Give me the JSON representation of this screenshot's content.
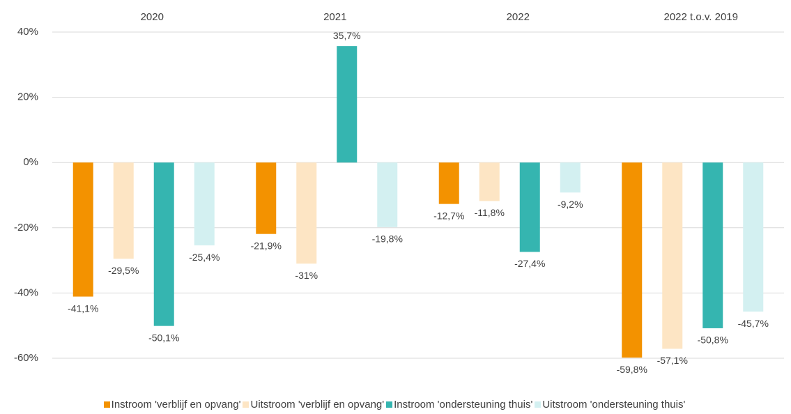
{
  "chart_data": {
    "type": "bar",
    "categories": [
      "2020",
      "2021",
      "2022",
      "2022 t.o.v. 2019"
    ],
    "series": [
      {
        "name": "Instroom 'verblijf en opvang'",
        "color": "#f39200",
        "values": [
          -41.1,
          -21.9,
          -12.7,
          -59.8
        ],
        "value_labels": [
          "-41,1%",
          "-21,9%",
          "-12,7%",
          "-59,8%"
        ]
      },
      {
        "name": "Uitstroom 'verblijf en opvang'",
        "color": "#fde5c4",
        "values": [
          -29.5,
          -31,
          -11.8,
          -57.1
        ],
        "value_labels": [
          "-29,5%",
          "-31%",
          "-11,8%",
          "-57,1%"
        ]
      },
      {
        "name": "Instroom 'ondersteuning thuis'",
        "color": "#35b5b0",
        "values": [
          -50.1,
          35.7,
          -27.4,
          -50.8
        ],
        "value_labels": [
          "-50,1%",
          "35,7%",
          "-27,4%",
          "-50,8%"
        ]
      },
      {
        "name": "Uitstroom 'ondersteuning thuis'",
        "color": "#d3f0f1",
        "values": [
          -25.4,
          -19.8,
          -9.2,
          -45.7
        ],
        "value_labels": [
          "-25,4%",
          "-19,8%",
          "-9,2%",
          "-45,7%"
        ]
      }
    ],
    "ylim": [
      -60,
      40
    ],
    "yticks": [
      {
        "value": -60,
        "label": "-60%"
      },
      {
        "value": -40,
        "label": "-40%"
      },
      {
        "value": -20,
        "label": "-20%"
      },
      {
        "value": 0,
        "label": "0%"
      },
      {
        "value": 20,
        "label": "20%"
      },
      {
        "value": 40,
        "label": "40%"
      }
    ],
    "grid": true,
    "legend": "bottom"
  }
}
